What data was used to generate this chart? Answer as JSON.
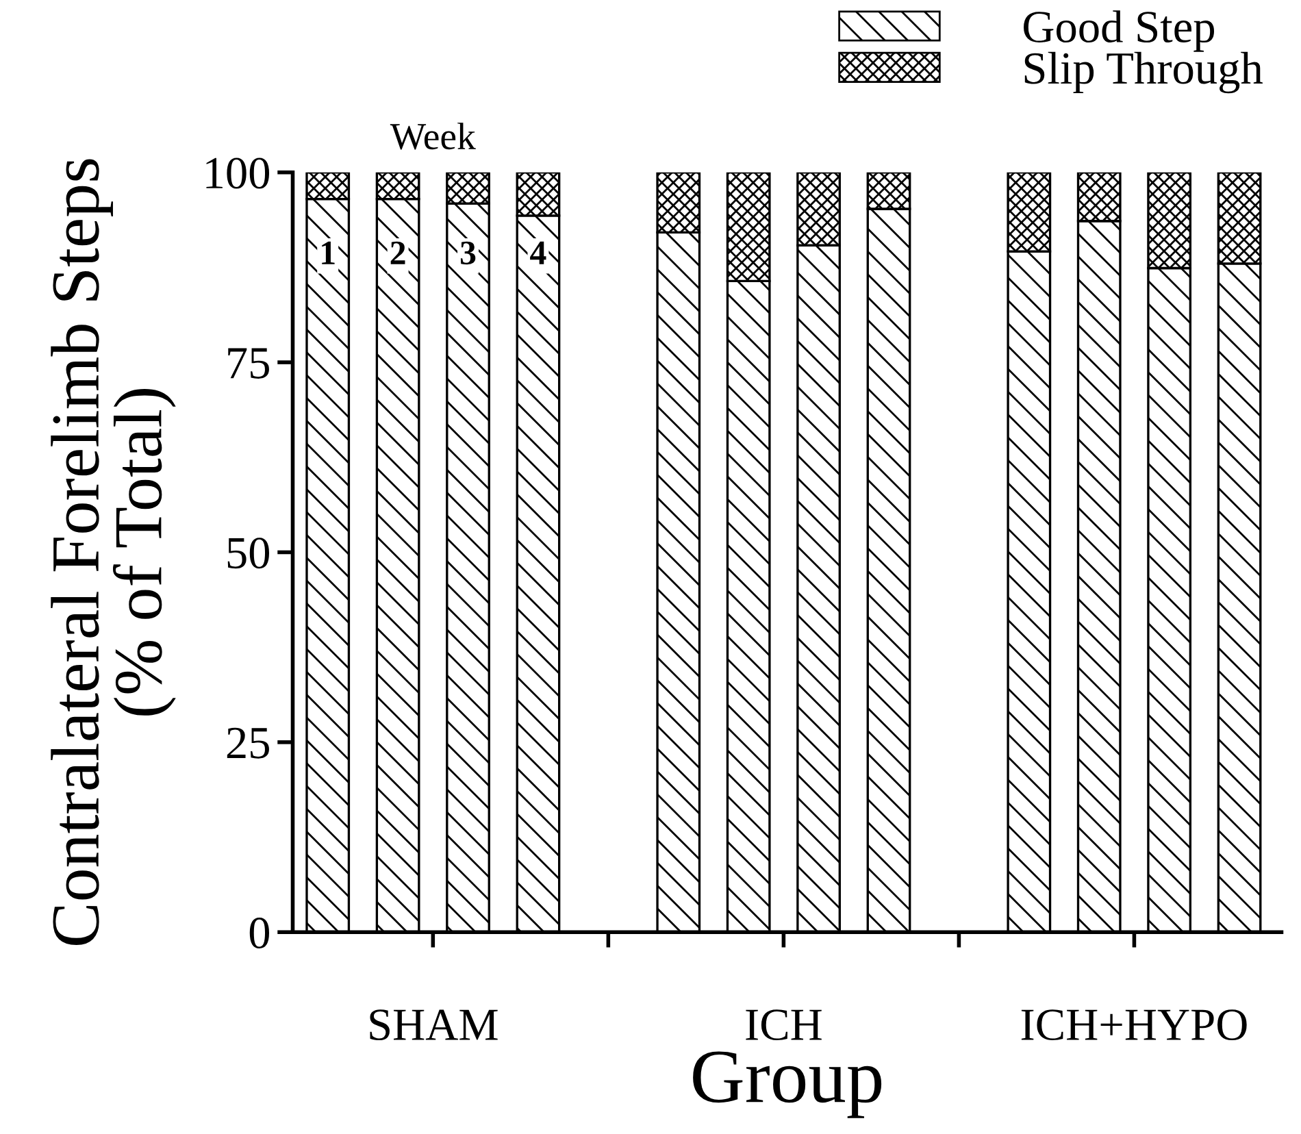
{
  "chart_data": {
    "type": "bar",
    "stacked": true,
    "xlabel": "Group",
    "ylabel": "Contralateral Forelimb Steps\n(% of Total)",
    "categories": [
      null,
      null,
      null,
      null,
      null,
      null,
      null,
      null,
      null,
      null,
      null,
      null,
      null,
      null
    ],
    "series": [
      {
        "name": "Good Step",
        "color": "#000000",
        "values": [
          96.5,
          96.5,
          95.9,
          94.3,
          null,
          92.1,
          85.7,
          90.4,
          95.2,
          null,
          89.6,
          93.6,
          87.4,
          88.0
        ]
      },
      {
        "name": "Slip Through",
        "color": "#000000",
        "values": [
          3.5,
          3.5,
          4.1,
          5.7,
          null,
          7.9,
          14.3,
          9.6,
          4.8,
          null,
          10.4,
          6.4,
          12.6,
          12.0
        ]
      }
    ],
    "ylim": [
      0,
      100
    ],
    "yticks": [
      0,
      25,
      50,
      75,
      100
    ],
    "grid": false,
    "legend": "top right",
    "annotations": [
      "Week",
      "1",
      "2",
      "3",
      "4",
      "SHAM",
      "ICH",
      "ICH+HYPO"
    ]
  }
}
